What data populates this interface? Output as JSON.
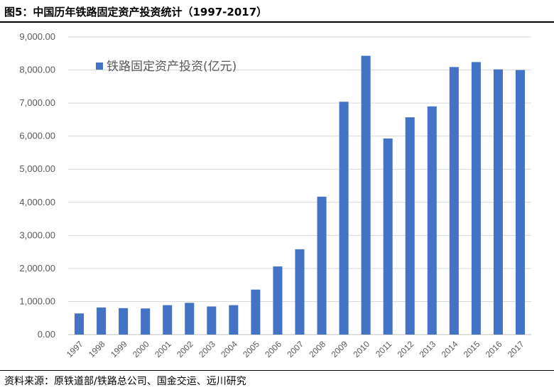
{
  "figure": {
    "title": "图5：中国历年铁路固定资产投资统计（1997-2017）",
    "source": "资料来源：原铁道部/铁路总公司、国金交运、远川研究"
  },
  "chart_data": {
    "type": "bar",
    "categories": [
      "1997",
      "1998",
      "1999",
      "2000",
      "2001",
      "2002",
      "2003",
      "2004",
      "2005",
      "2006",
      "2007",
      "2008",
      "2009",
      "2010",
      "2011",
      "2012",
      "2013",
      "2014",
      "2015",
      "2016",
      "2017"
    ],
    "series": [
      {
        "name": "铁路固定资产投资(亿元)",
        "color": "#4472c4",
        "values": [
          640,
          820,
          800,
          790,
          890,
          960,
          850,
          890,
          1360,
          2060,
          2580,
          4170,
          7040,
          8430,
          5930,
          6570,
          6900,
          8090,
          8240,
          8020,
          8000
        ]
      }
    ],
    "ylim": [
      0,
      9000
    ],
    "yticks": [
      "0.00",
      "1,000.00",
      "2,000.00",
      "3,000.00",
      "4,000.00",
      "5,000.00",
      "6,000.00",
      "7,000.00",
      "8,000.00",
      "9,000.00"
    ],
    "grid": true,
    "legend_position": "top-left"
  }
}
